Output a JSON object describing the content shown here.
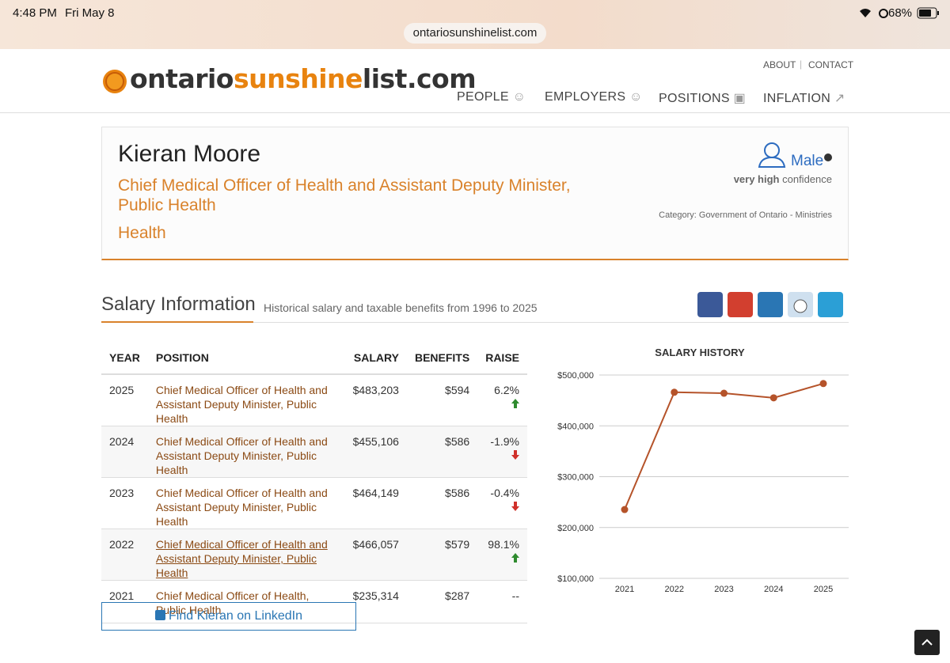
{
  "status_bar": {
    "time": "4:48 PM",
    "date": "Fri May 8",
    "battery": "68%"
  },
  "url": "ontariosunshinelist.com",
  "logo": [
    "ontario",
    "sunshine",
    "list.com"
  ],
  "top_links": [
    "ABOUT",
    "CONTACT"
  ],
  "nav": [
    "PEOPLE",
    "EMPLOYERS",
    "POSITIONS",
    "INFLATION"
  ],
  "profile": {
    "name": "Kieran Moore",
    "title": "Chief Medical Officer of Health and Assistant Deputy Minister, Public Health",
    "ministry": "Health",
    "gender": "Male",
    "confidence_level": "very high",
    "confidence_word": "confidence",
    "category": "Category: Government of Ontario - Ministries"
  },
  "section": {
    "title": "Salary Information",
    "subtitle": "Historical salary and taxable benefits from 1996 to 2025"
  },
  "table": {
    "headers": [
      "YEAR",
      "POSITION",
      "SALARY",
      "BENEFITS",
      "RAISE"
    ],
    "rows": [
      [
        "2025",
        "Chief Medical Officer of Health and Assistant Deputy Minister, Public Health",
        "$483,203",
        "$594",
        "6.2%"
      ],
      [
        "2024",
        "Chief Medical Officer of Health and Assistant Deputy Minister, Public Health",
        "$455,106",
        "$586",
        "-1.9%"
      ],
      [
        "2023",
        "Chief Medical Officer of Health and Assistant Deputy Minister, Public Health",
        "$464,149",
        "$586",
        "-0.4%"
      ],
      [
        "2022",
        "Chief Medical Officer of Health and Assistant Deputy Minister, Public Health",
        "$466,057",
        "$579",
        "98.1%"
      ],
      [
        "2021",
        "Chief Medical Officer of Health, Public Health",
        "$235,314",
        "$287",
        "--"
      ]
    ]
  },
  "linkedin_button": "Find Kieran on LinkedIn",
  "chart_data": {
    "type": "line",
    "title": "SALARY HISTORY",
    "categories": [
      "2021",
      "2022",
      "2023",
      "2024",
      "2025"
    ],
    "values": [
      235314,
      466057,
      464149,
      455106,
      483203
    ],
    "color": "#b5532a",
    "ylim": [
      100000,
      500000
    ],
    "yticks": [
      {
        "value": 100000,
        "label": "$100,000"
      },
      {
        "value": 200000,
        "label": "$200,000"
      },
      {
        "value": 300000,
        "label": "$300,000"
      },
      {
        "value": 400000,
        "label": "$400,000"
      },
      {
        "value": 500000,
        "label": "$500,000"
      }
    ],
    "grid": true
  }
}
